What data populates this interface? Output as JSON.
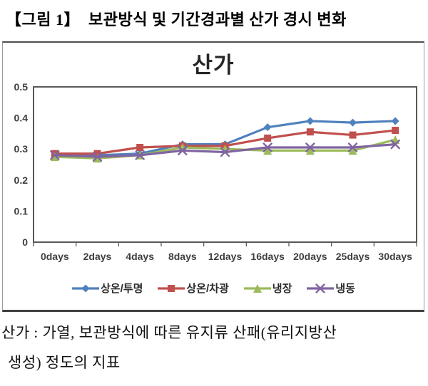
{
  "figure_title": "【그림 1】  보관방식 및 기간경과별 산가 경시 변화",
  "footnote": {
    "line1": "산가 : 가열, 보관방식에 따른 유지류 산패(유리지방산",
    "line2": "생성) 정도의 지표"
  },
  "chart_data": {
    "type": "line",
    "title": "산가",
    "categories": [
      "0days",
      "2days",
      "4days",
      "8days",
      "12days",
      "16days",
      "20days",
      "25days",
      "30days"
    ],
    "y_ticks": [
      "0.5",
      "0.4",
      "0.3",
      "0.2",
      "0.1",
      "0"
    ],
    "ylim": [
      0,
      0.5
    ],
    "grid": false,
    "legend_position": "bottom",
    "series": [
      {
        "name": "상온/투명",
        "marker": "diamond",
        "color": "#4F81BD",
        "values": [
          0.28,
          0.28,
          0.285,
          0.315,
          0.315,
          0.37,
          0.39,
          0.385,
          0.39
        ]
      },
      {
        "name": "상온/차광",
        "marker": "square",
        "color": "#C0504D",
        "values": [
          0.285,
          0.285,
          0.305,
          0.31,
          0.31,
          0.335,
          0.355,
          0.345,
          0.36
        ]
      },
      {
        "name": "냉장",
        "marker": "triangle",
        "color": "#9BBB59",
        "values": [
          0.275,
          0.27,
          0.28,
          0.305,
          0.3,
          0.295,
          0.295,
          0.295,
          0.33
        ]
      },
      {
        "name": "냉동",
        "marker": "x",
        "color": "#8064A2",
        "values": [
          0.28,
          0.275,
          0.28,
          0.295,
          0.29,
          0.305,
          0.305,
          0.305,
          0.315
        ]
      }
    ],
    "plot_border_color": "#595959",
    "axis_text_color": "#3f3f3f"
  }
}
